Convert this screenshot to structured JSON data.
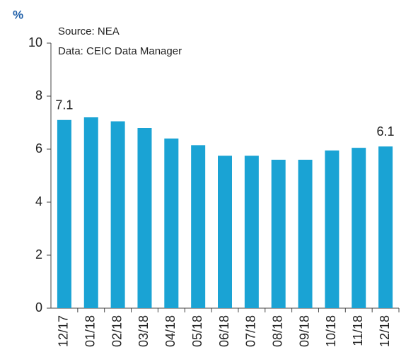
{
  "chart_data": {
    "type": "bar",
    "title": "%",
    "annotations": [
      "Source: NEA",
      "Data: CEIC Data Manager"
    ],
    "categories": [
      "12/17",
      "01/18",
      "02/18",
      "03/18",
      "04/18",
      "05/18",
      "06/18",
      "07/18",
      "08/18",
      "09/18",
      "10/18",
      "11/18",
      "12/18"
    ],
    "values": [
      7.1,
      7.2,
      7.05,
      6.8,
      6.4,
      6.15,
      5.75,
      5.75,
      5.6,
      5.6,
      5.95,
      6.05,
      6.1
    ],
    "value_labels": [
      "7.1",
      null,
      null,
      null,
      null,
      null,
      null,
      null,
      null,
      null,
      null,
      null,
      "6.1"
    ],
    "color": "#1aa3d4",
    "ylim": [
      0,
      10
    ],
    "yticks": [
      0,
      2,
      4,
      6,
      8,
      10
    ],
    "grid": false
  }
}
